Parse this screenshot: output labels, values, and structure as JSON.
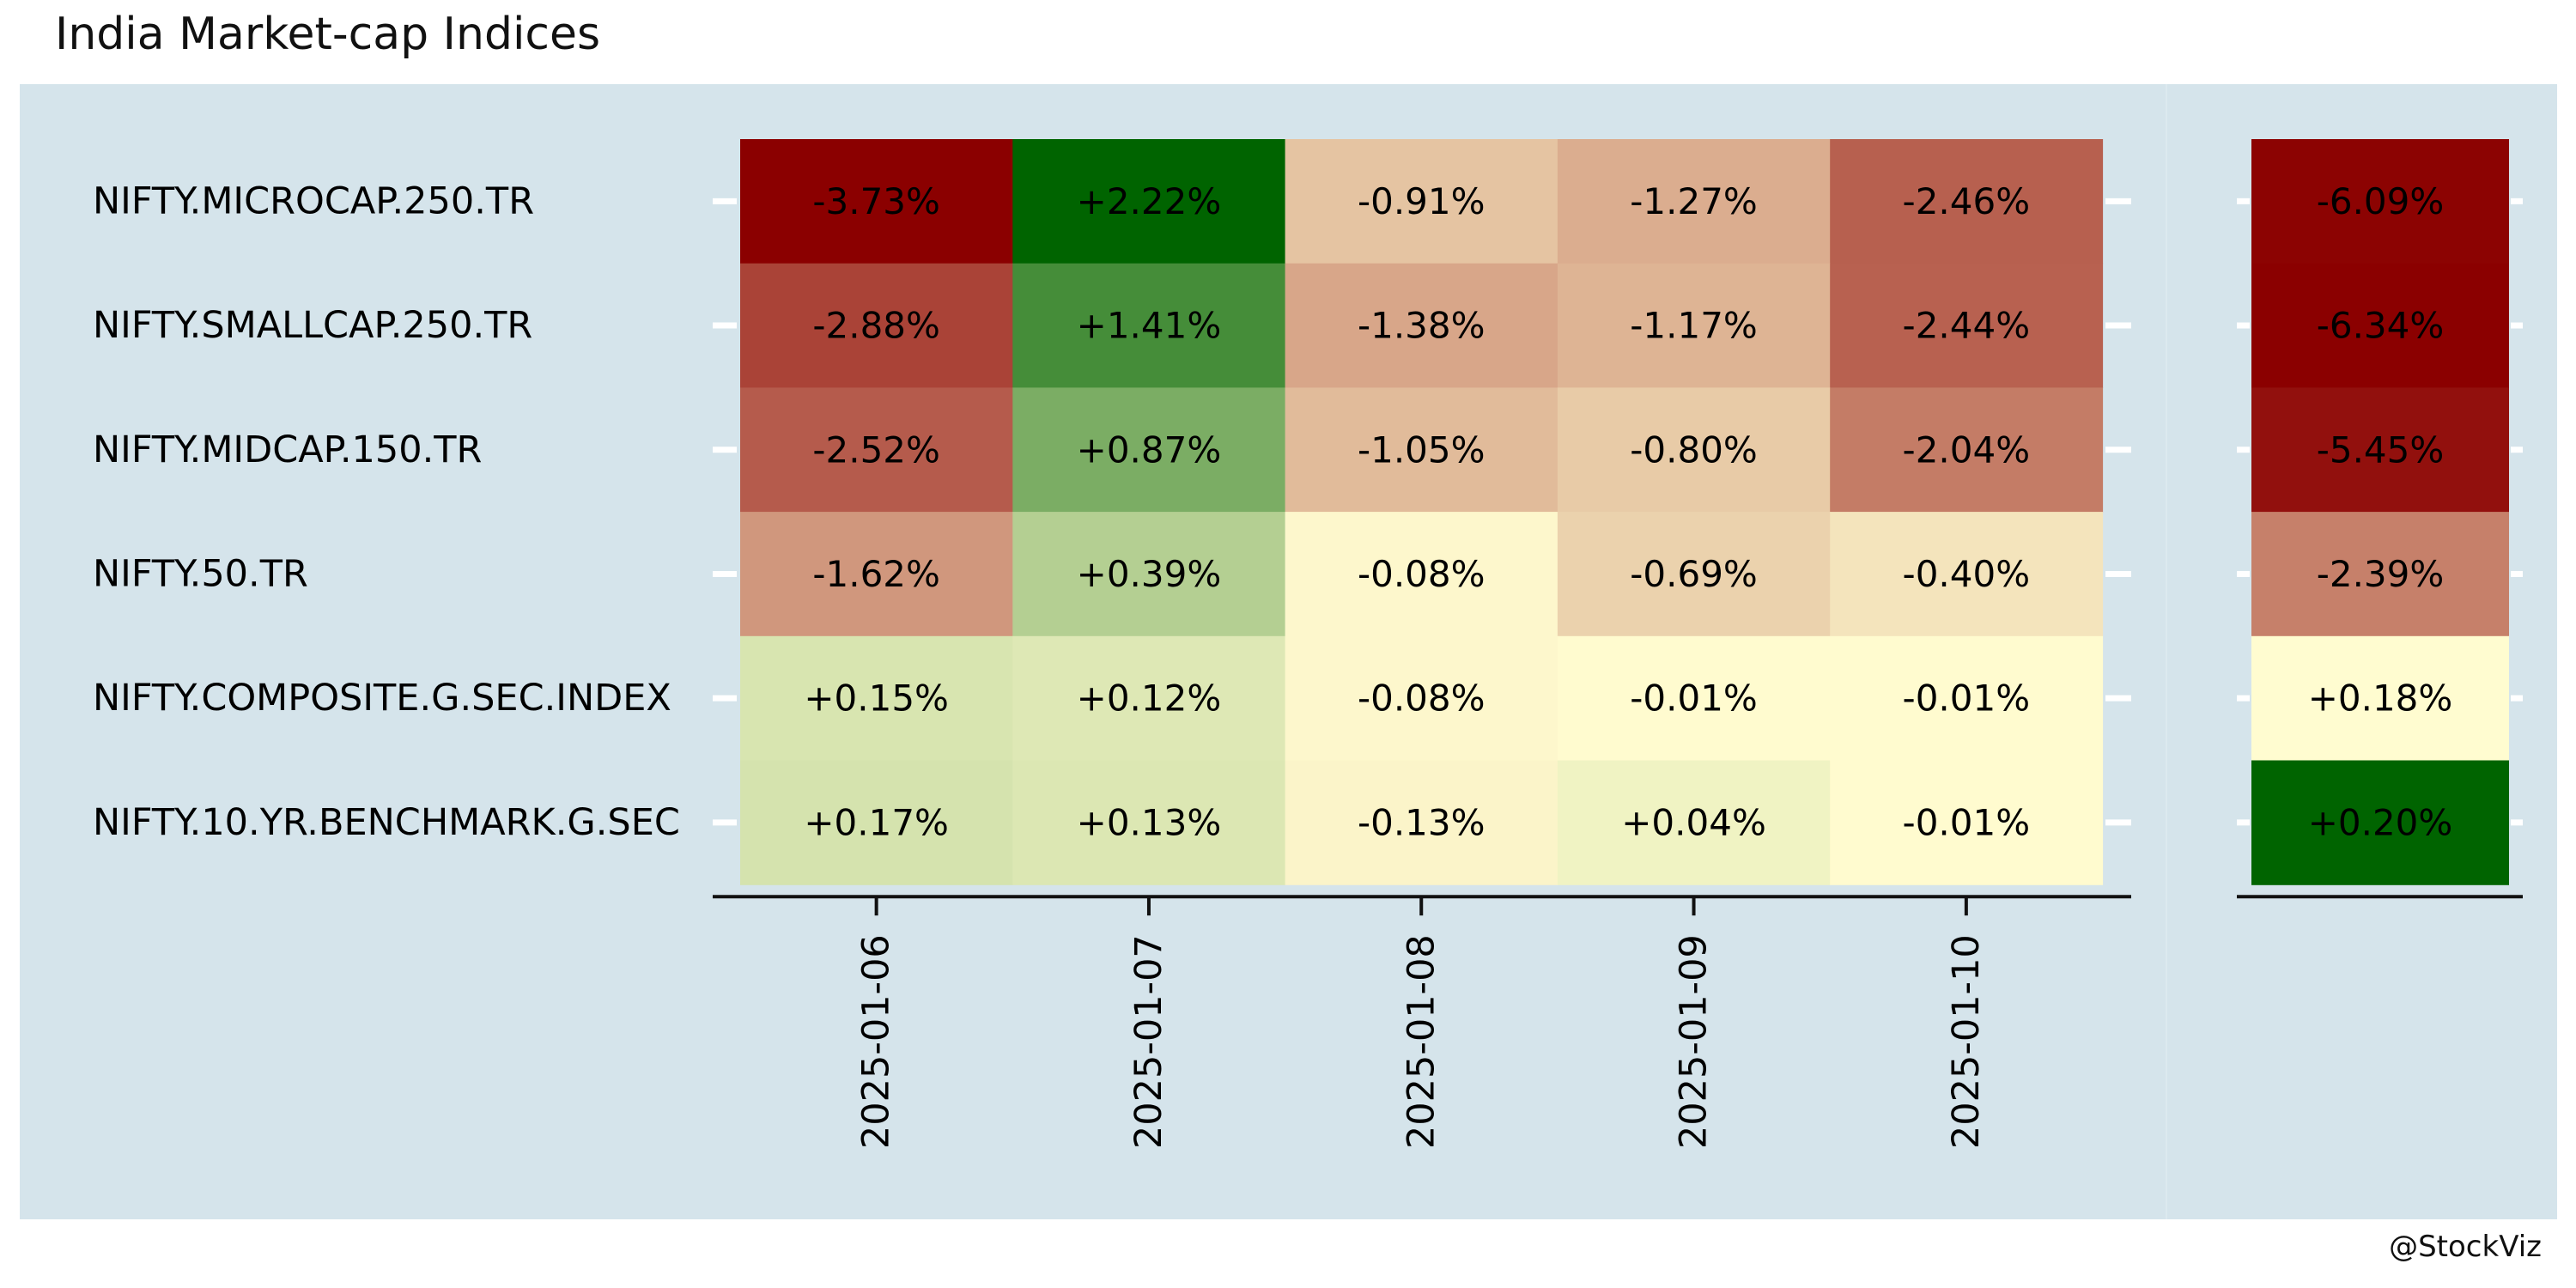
{
  "title": "India Market-cap Indices",
  "caption": "@StockViz",
  "colors": {
    "panel_background": "#d5e4eb",
    "low": "#8b0000",
    "mid": "#fffcd0",
    "high": "#006400",
    "tick_color": "#ffffff",
    "axis_color": "#111111"
  },
  "chart_data": [
    {
      "type": "heatmap",
      "title": "",
      "xlabel": "",
      "ylabel": "",
      "rows": [
        "NIFTY.MICROCAP.250.TR",
        "NIFTY.SMALLCAP.250.TR",
        "NIFTY.MIDCAP.150.TR",
        "NIFTY.50.TR",
        "NIFTY.COMPOSITE.G.SEC.INDEX",
        "NIFTY.10.YR.BENCHMARK.G.SEC"
      ],
      "columns": [
        "2025-01-06",
        "2025-01-07",
        "2025-01-08",
        "2025-01-09",
        "2025-01-10"
      ],
      "values": [
        [
          -3.73,
          2.22,
          -0.91,
          -1.27,
          -2.46
        ],
        [
          -2.88,
          1.41,
          -1.38,
          -1.17,
          -2.44
        ],
        [
          -2.52,
          0.87,
          -1.05,
          -0.8,
          -2.04
        ],
        [
          -1.62,
          0.39,
          -0.08,
          -0.69,
          -0.4
        ],
        [
          0.15,
          0.12,
          -0.08,
          -0.01,
          -0.01
        ],
        [
          0.17,
          0.13,
          -0.13,
          0.04,
          -0.01
        ]
      ],
      "labels": [
        [
          "-3.73%",
          "+2.22%",
          "-0.91%",
          "-1.27%",
          "-2.46%"
        ],
        [
          "-2.88%",
          "+1.41%",
          "-1.38%",
          "-1.17%",
          "-2.44%"
        ],
        [
          "-2.52%",
          "+0.87%",
          "-1.05%",
          "-0.80%",
          "-2.04%"
        ],
        [
          "-1.62%",
          "+0.39%",
          "-0.08%",
          "-0.69%",
          "-0.40%"
        ],
        [
          "+0.15%",
          "+0.12%",
          "-0.08%",
          "-0.01%",
          "-0.01%"
        ],
        [
          "+0.17%",
          "+0.13%",
          "-0.13%",
          "+0.04%",
          "-0.01%"
        ]
      ],
      "color_scale": {
        "min": -3.73,
        "mid": 0,
        "max": 2.22
      }
    },
    {
      "type": "heatmap",
      "title": "",
      "xlabel": "",
      "ylabel": "",
      "rows": [
        "NIFTY.MICROCAP.250.TR",
        "NIFTY.SMALLCAP.250.TR",
        "NIFTY.MIDCAP.150.TR",
        "NIFTY.50.TR",
        "NIFTY.COMPOSITE.G.SEC.INDEX",
        "NIFTY.10.YR.BENCHMARK.G.SEC"
      ],
      "columns": [
        ""
      ],
      "values": [
        [
          -6.09
        ],
        [
          -6.34
        ],
        [
          -5.45
        ],
        [
          -2.39
        ],
        [
          0.18
        ],
        [
          0.2
        ]
      ],
      "labels": [
        [
          "-6.09%"
        ],
        [
          "-6.34%"
        ],
        [
          "-5.45%"
        ],
        [
          "-2.39%"
        ],
        [
          "+0.18%"
        ],
        [
          "+0.20%"
        ]
      ],
      "color_scale": {
        "min": -6.34,
        "max": 0.2
      }
    }
  ]
}
